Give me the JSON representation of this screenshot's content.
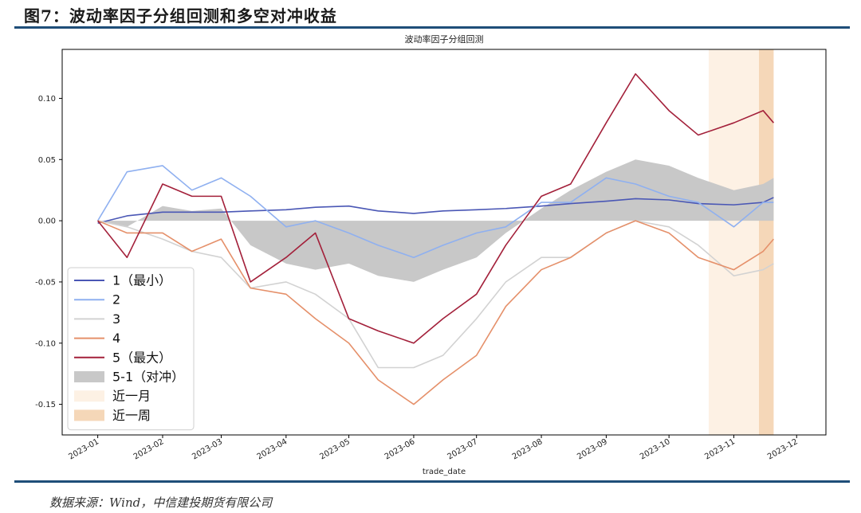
{
  "figure": {
    "title": "图7：波动率因子分组回测和多空对冲收益",
    "source": "数据来源：Wind，中信建投期货有限公司"
  },
  "chart_data": {
    "type": "line",
    "title": "波动率因子分组回测",
    "xlabel": "trade_date",
    "ylabel": "",
    "x_ticks": [
      "2023-01",
      "2023-02",
      "2023-03",
      "2023-04",
      "2023-05",
      "2023-06",
      "2023-07",
      "2023-08",
      "2023-09",
      "2023-10",
      "2023-11",
      "2023-12"
    ],
    "y_ticks": [
      "0.10",
      "0.05",
      "0.00",
      "-0.05",
      "-0.10",
      "-0.15"
    ],
    "ylim": [
      -0.175,
      0.14
    ],
    "xlim": [
      "2022-12-15",
      "2023-12-15"
    ],
    "grid": false,
    "legend_position": "lower-left",
    "dates": [
      "2023-01-01",
      "2023-01-15",
      "2023-02-01",
      "2023-02-15",
      "2023-03-01",
      "2023-03-15",
      "2023-04-01",
      "2023-04-15",
      "2023-05-01",
      "2023-05-15",
      "2023-06-01",
      "2023-06-15",
      "2023-07-01",
      "2023-07-15",
      "2023-08-01",
      "2023-08-15",
      "2023-09-01",
      "2023-09-15",
      "2023-10-01",
      "2023-10-15",
      "2023-11-01",
      "2023-11-15",
      "2023-11-20"
    ],
    "series": [
      {
        "name": "1（最小）",
        "kind": "line",
        "color": "#4a57b5",
        "values": [
          -0.002,
          0.004,
          0.007,
          0.007,
          0.007,
          0.008,
          0.009,
          0.011,
          0.012,
          0.008,
          0.006,
          0.008,
          0.009,
          0.01,
          0.012,
          0.014,
          0.016,
          0.018,
          0.017,
          0.014,
          0.013,
          0.015,
          0.019
        ]
      },
      {
        "name": "2",
        "kind": "line",
        "color": "#8fb0f0",
        "values": [
          0.0,
          0.04,
          0.045,
          0.025,
          0.035,
          0.02,
          -0.005,
          0.0,
          -0.01,
          -0.02,
          -0.03,
          -0.02,
          -0.01,
          -0.005,
          0.015,
          0.015,
          0.035,
          0.03,
          0.02,
          0.015,
          -0.005,
          0.015,
          0.015
        ]
      },
      {
        "name": "3",
        "kind": "line",
        "color": "#d2d2d2",
        "values": [
          0.0,
          -0.005,
          -0.015,
          -0.025,
          -0.03,
          -0.055,
          -0.05,
          -0.06,
          -0.08,
          -0.12,
          -0.12,
          -0.11,
          -0.08,
          -0.05,
          -0.03,
          -0.03,
          -0.01,
          0.0,
          -0.005,
          -0.02,
          -0.045,
          -0.04,
          -0.035
        ]
      },
      {
        "name": "4",
        "kind": "line",
        "color": "#e5906a",
        "values": [
          0.0,
          -0.01,
          -0.01,
          -0.025,
          -0.015,
          -0.055,
          -0.06,
          -0.08,
          -0.1,
          -0.13,
          -0.15,
          -0.13,
          -0.11,
          -0.07,
          -0.04,
          -0.03,
          -0.01,
          0.0,
          -0.01,
          -0.03,
          -0.04,
          -0.025,
          -0.015
        ]
      },
      {
        "name": "5（最大）",
        "kind": "line",
        "color": "#a3203a",
        "values": [
          0.0,
          -0.03,
          0.03,
          0.02,
          0.02,
          -0.05,
          -0.03,
          -0.01,
          -0.08,
          -0.09,
          -0.1,
          -0.08,
          -0.06,
          -0.02,
          0.02,
          0.03,
          0.08,
          0.12,
          0.09,
          0.07,
          0.08,
          0.09,
          0.08
        ]
      },
      {
        "name": "5-1（对冲）",
        "kind": "area",
        "color": "#c8c8c8",
        "values": [
          0.0,
          -0.005,
          0.012,
          0.008,
          0.01,
          -0.02,
          -0.035,
          -0.04,
          -0.035,
          -0.045,
          -0.05,
          -0.04,
          -0.03,
          -0.01,
          0.01,
          0.025,
          0.04,
          0.05,
          0.045,
          0.035,
          0.025,
          0.03,
          0.035
        ]
      }
    ],
    "highlights": [
      {
        "name": "近一月",
        "color": "#fdf1e4",
        "start": "2023-10-20",
        "end": "2023-11-20"
      },
      {
        "name": "近一周",
        "color": "#f5d7b8",
        "start": "2023-11-13",
        "end": "2023-11-20"
      }
    ]
  }
}
